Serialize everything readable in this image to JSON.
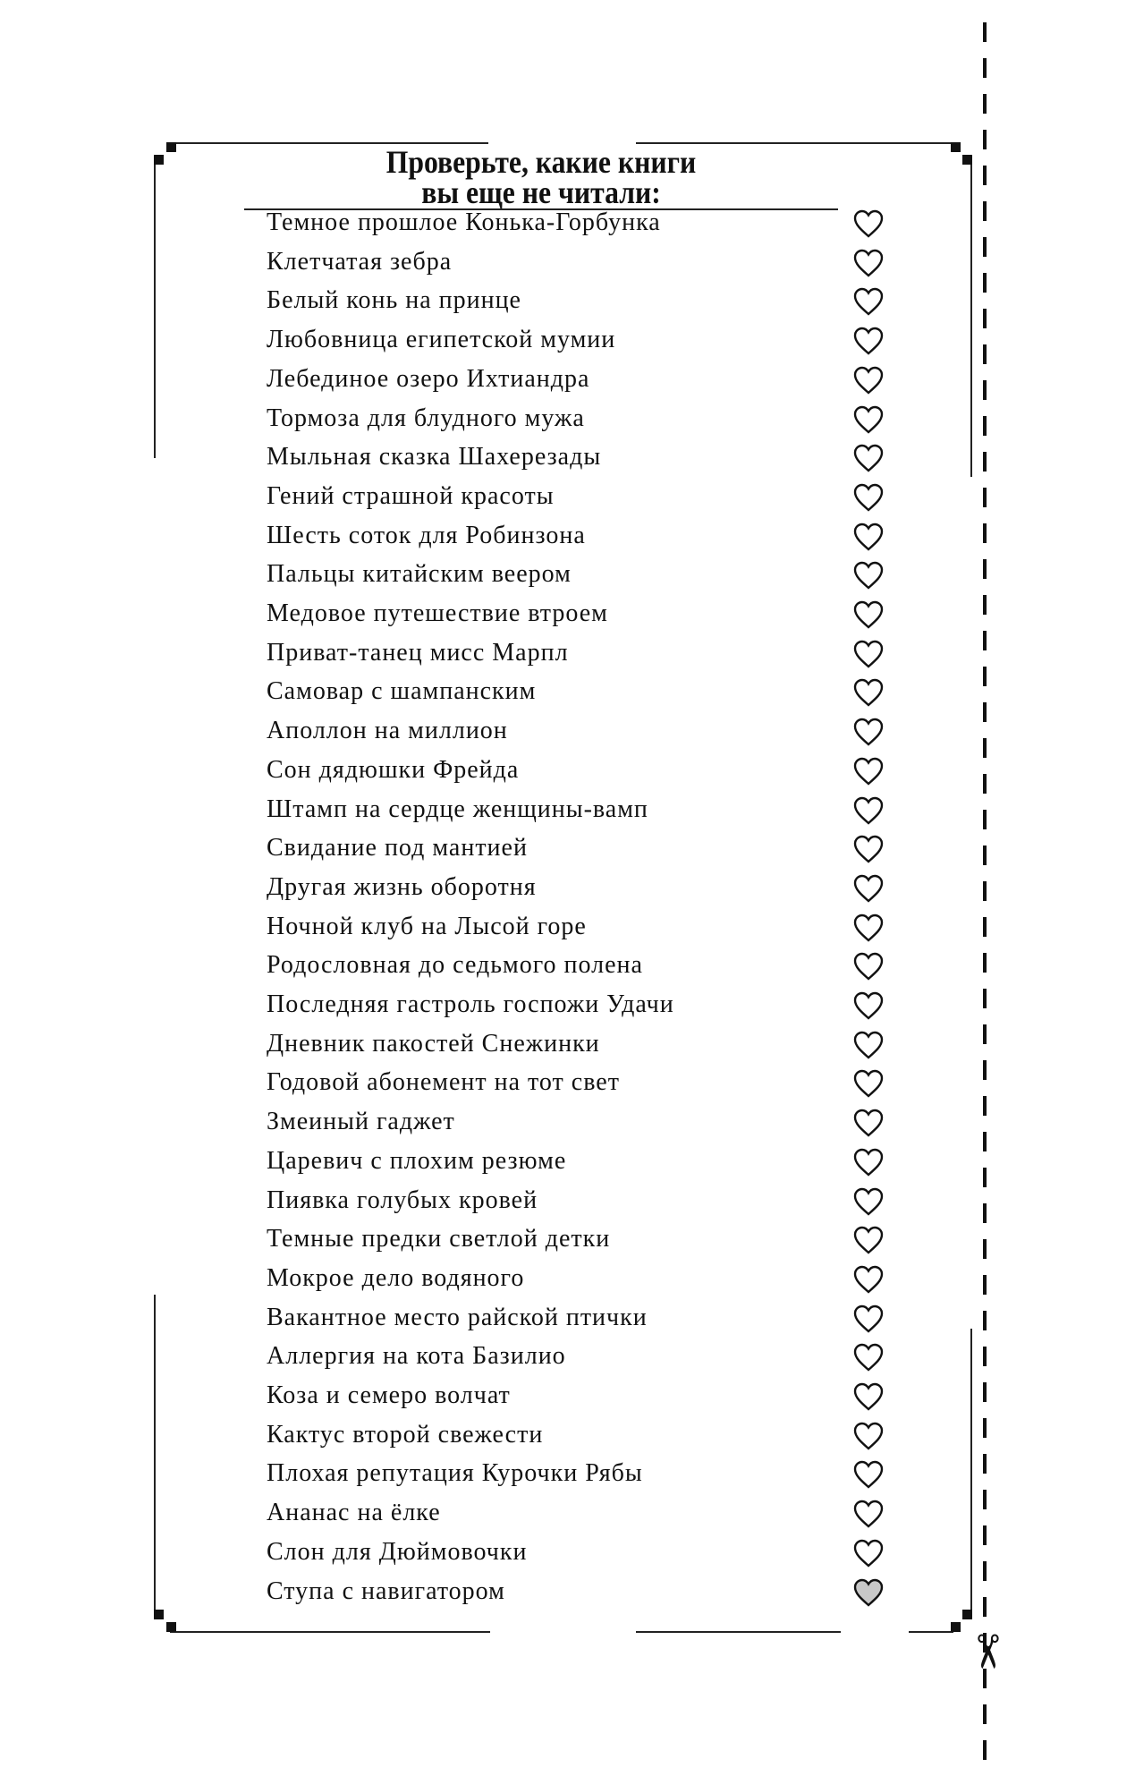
{
  "title_line1": "Проверьте, какие книги",
  "title_line2": "вы еще не читали:",
  "heart_fill_checked": "#c8c8c8",
  "items": [
    {
      "label": "Темное прошлое Конька-Горбунка",
      "checked": false
    },
    {
      "label": "Клетчатая зебра",
      "checked": false
    },
    {
      "label": "Белый конь на принце",
      "checked": false
    },
    {
      "label": "Любовница египетской мумии",
      "checked": false
    },
    {
      "label": "Лебединое озеро Ихтиандра",
      "checked": false
    },
    {
      "label": "Тормоза для блудного мужа",
      "checked": false
    },
    {
      "label": "Мыльная сказка Шахерезады",
      "checked": false
    },
    {
      "label": "Гений страшной красоты",
      "checked": false
    },
    {
      "label": "Шесть соток для Робинзона",
      "checked": false
    },
    {
      "label": "Пальцы китайским веером",
      "checked": false
    },
    {
      "label": "Медовое путешествие втроем",
      "checked": false
    },
    {
      "label": "Приват-танец мисс Марпл",
      "checked": false
    },
    {
      "label": "Самовар с шампанским",
      "checked": false
    },
    {
      "label": "Аполлон на миллион",
      "checked": false
    },
    {
      "label": "Сон дядюшки Фрейда",
      "checked": false
    },
    {
      "label": "Штамп на сердце женщины-вамп",
      "checked": false
    },
    {
      "label": "Свидание под мантией",
      "checked": false
    },
    {
      "label": "Другая жизнь оборотня",
      "checked": false
    },
    {
      "label": "Ночной клуб на Лысой горе",
      "checked": false
    },
    {
      "label": "Родословная до седьмого полена",
      "checked": false
    },
    {
      "label": "Последняя гастроль госпожи Удачи",
      "checked": false
    },
    {
      "label": "Дневник пакостей Снежинки",
      "checked": false
    },
    {
      "label": "Годовой абонемент на тот свет",
      "checked": false
    },
    {
      "label": "Змеиный гаджет",
      "checked": false
    },
    {
      "label": "Царевич с плохим резюме",
      "checked": false
    },
    {
      "label": "Пиявка голубых кровей",
      "checked": false
    },
    {
      "label": "Темные предки светлой детки",
      "checked": false
    },
    {
      "label": "Мокрое дело водяного",
      "checked": false
    },
    {
      "label": "Вакантное место райской птички",
      "checked": false
    },
    {
      "label": "Аллергия на кота Базилио",
      "checked": false
    },
    {
      "label": "Коза и семеро волчат",
      "checked": false
    },
    {
      "label": "Кактус второй свежести",
      "checked": false
    },
    {
      "label": "Плохая репутация Курочки Рябы",
      "checked": false
    },
    {
      "label": "Ананас на ёлке",
      "checked": false
    },
    {
      "label": "Слон для Дюймовочки",
      "checked": false
    },
    {
      "label": "Ступа с навигатором",
      "checked": true
    }
  ]
}
